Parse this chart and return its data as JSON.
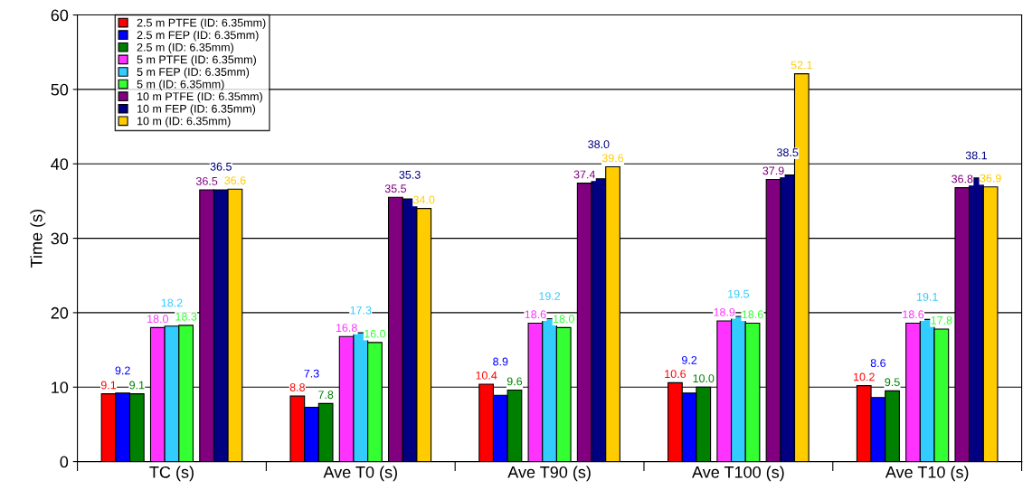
{
  "chart_data": {
    "type": "bar",
    "ylabel": "Time (s)",
    "categories": [
      "TC (s)",
      "Ave T0 (s)",
      "Ave T90 (s)",
      "Ave T100 (s)",
      "Ave T10 (s)"
    ],
    "ylim": [
      0,
      60
    ],
    "yticks": [
      0,
      10,
      20,
      30,
      40,
      50,
      60
    ],
    "grid": "y",
    "legend": "top left",
    "series": [
      {
        "name": "2.5 m PTFE (ID: 6.35mm)",
        "color": "#ff0000",
        "values": [
          9.1,
          8.8,
          10.4,
          10.6,
          10.2
        ],
        "value_labels": [
          "9.1",
          "8.8",
          "10.4",
          "10.6",
          "10.2"
        ]
      },
      {
        "name": "2.5 m FEP (ID: 6.35mm)",
        "color": "#0000ff",
        "values": [
          9.2,
          7.3,
          8.9,
          9.2,
          8.6
        ],
        "value_labels": [
          "9.2",
          "7.3",
          "8.9",
          "9.2",
          "8.6"
        ]
      },
      {
        "name": "2.5 m (ID: 6.35mm)",
        "color": "#008000",
        "values": [
          9.1,
          7.8,
          9.6,
          10.0,
          9.5
        ],
        "value_labels": [
          "9.1",
          "7.8",
          "9.6",
          "10.0",
          "9.5"
        ]
      },
      {
        "name": "5 m PTFE (ID: 6.35mm)",
        "color": "#ff33ff",
        "values": [
          18.0,
          16.8,
          18.6,
          18.9,
          18.6
        ],
        "value_labels": [
          "18.0",
          "16.8",
          "18.6",
          "18.9",
          "18.6"
        ]
      },
      {
        "name": "5 m FEP (ID: 6.35mm)",
        "color": "#33ccff",
        "values": [
          18.2,
          17.3,
          19.2,
          19.5,
          19.1
        ],
        "value_labels": [
          "18.2",
          "17.3",
          "19.2",
          "19.5",
          "19.1"
        ]
      },
      {
        "name": "5 m (ID: 6.35mm)",
        "color": "#33ff33",
        "values": [
          18.3,
          16.0,
          18.0,
          18.6,
          17.8
        ],
        "value_labels": [
          "18.3",
          "16.0",
          "18.0",
          "18.6",
          "17.8"
        ]
      },
      {
        "name": "10 m PTFE (ID: 6.35mm)",
        "color": "#800080",
        "values": [
          36.5,
          35.5,
          37.4,
          37.9,
          36.8
        ],
        "value_labels": [
          "36.5",
          "35.5",
          "37.4",
          "37.9",
          "36.8"
        ]
      },
      {
        "name": "10 m FEP (ID: 6.35mm)",
        "color": "#000080",
        "values": [
          36.5,
          35.3,
          38.0,
          38.5,
          38.1
        ],
        "value_labels": [
          "36.5",
          "35.3",
          "38.0",
          "38.5",
          "38.1"
        ]
      },
      {
        "name": "10 m (ID: 6.35mm)",
        "color": "#ffcc00",
        "values": [
          36.6,
          34.0,
          39.6,
          52.1,
          36.9
        ],
        "value_labels": [
          "36.6",
          "34.0",
          "39.6",
          "52.1",
          "36.9"
        ]
      }
    ]
  }
}
